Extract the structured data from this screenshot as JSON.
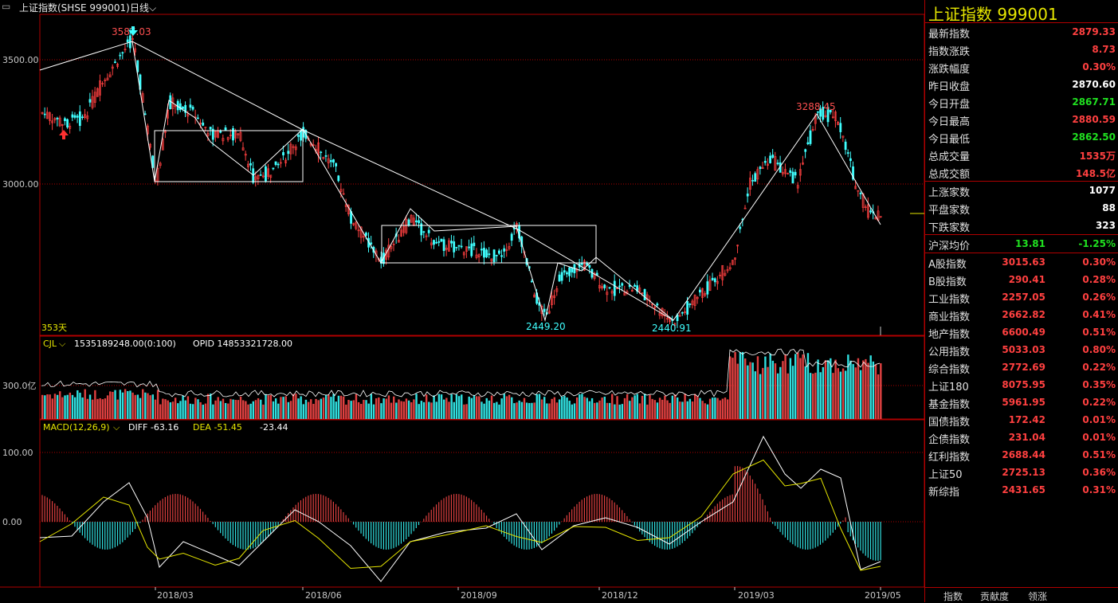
{
  "topbar": {
    "title": "上证指数(SHSE 999001)",
    "period": "日线"
  },
  "kline": {
    "y_ticks": [
      "3500.00",
      "3000.00"
    ],
    "annotations": {
      "high1": "3587.03",
      "low1": "2449.20",
      "low2": "2440.91",
      "high2": "3288.45",
      "days": "353天"
    }
  },
  "volume": {
    "name": "CJL",
    "value": "1535189248.00(0:100)",
    "opid": "OPID 14853321728.00",
    "y_tick": "300.0亿"
  },
  "macd": {
    "name": "MACD(12,26,9)",
    "diff": "DIFF -63.16",
    "dea": "DEA -51.45",
    "macd": "-23.44",
    "y_ticks": [
      "100.00",
      "0.00"
    ]
  },
  "x_labels": [
    "2018/03",
    "2018/06",
    "2018/09",
    "2018/12",
    "2019/03",
    "2019/05"
  ],
  "sidebar": {
    "title": "上证指数 999001",
    "quote": [
      {
        "label": "最新指数",
        "value": "2879.33",
        "color": "red"
      },
      {
        "label": "指数涨跌",
        "value": "8.73",
        "color": "red"
      },
      {
        "label": "涨跌幅度",
        "value": "0.30%",
        "color": "red"
      },
      {
        "label": "昨日收盘",
        "value": "2870.60",
        "color": "white"
      },
      {
        "label": "今日开盘",
        "value": "2867.71",
        "color": "green"
      },
      {
        "label": "今日最高",
        "value": "2880.59",
        "color": "red"
      },
      {
        "label": "今日最低",
        "value": "2862.50",
        "color": "green"
      },
      {
        "label": "总成交量",
        "value": "1535万",
        "color": "red"
      },
      {
        "label": "总成交额",
        "value": "148.5亿",
        "color": "red"
      }
    ],
    "breadth": [
      {
        "label": "上涨家数",
        "value": "1077",
        "color": "white"
      },
      {
        "label": "平盘家数",
        "value": "88",
        "color": "white"
      },
      {
        "label": "下跌家数",
        "value": "323",
        "color": "white"
      }
    ],
    "avg": {
      "label": "沪深均价",
      "value": "13.81",
      "pct": "-1.25%"
    },
    "indices": [
      {
        "label": "A股指数",
        "value": "3015.63",
        "pct": "0.30%"
      },
      {
        "label": "B股指数",
        "value": "290.41",
        "pct": "0.28%"
      },
      {
        "label": "工业指数",
        "value": "2257.05",
        "pct": "0.26%"
      },
      {
        "label": "商业指数",
        "value": "2662.82",
        "pct": "0.41%"
      },
      {
        "label": "地产指数",
        "value": "6600.49",
        "pct": "0.51%"
      },
      {
        "label": "公用指数",
        "value": "5033.03",
        "pct": "0.80%"
      },
      {
        "label": "综合指数",
        "value": "2772.69",
        "pct": "0.22%"
      },
      {
        "label": "上证180",
        "value": "8075.95",
        "pct": "0.35%"
      },
      {
        "label": "基金指数",
        "value": "5961.95",
        "pct": "0.22%"
      },
      {
        "label": "国债指数",
        "value": "172.42",
        "pct": "0.01%"
      },
      {
        "label": "企债指数",
        "value": "231.04",
        "pct": "0.01%"
      },
      {
        "label": "红利指数",
        "value": "2688.44",
        "pct": "0.51%"
      },
      {
        "label": "上证50",
        "value": "2725.13",
        "pct": "0.36%"
      },
      {
        "label": "新综指",
        "value": "2431.65",
        "pct": "0.31%"
      }
    ],
    "tabs": [
      "指数",
      "贡献度",
      "领涨"
    ]
  },
  "colors": {
    "up": "#ff4040",
    "down": "#40ffff",
    "grid": "#b00000",
    "dea": "#e6e600"
  }
}
